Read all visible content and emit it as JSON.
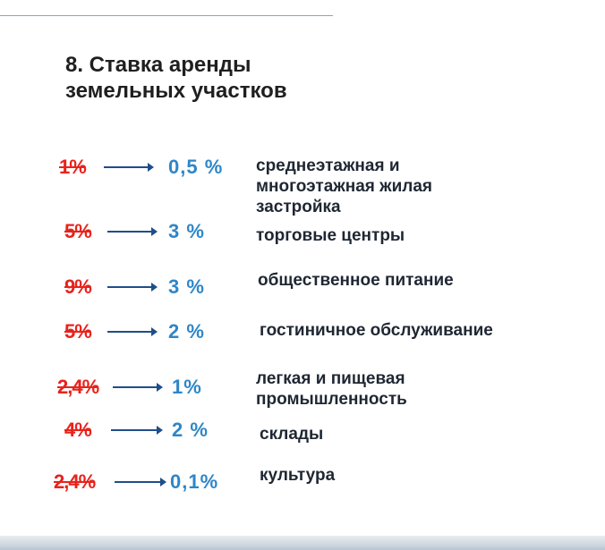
{
  "title": {
    "line1": "8. Ставка аренды",
    "line2": "земельных участков"
  },
  "rows": [
    {
      "old": "1%",
      "new": "0,5 %",
      "desc": "среднеэтажная и\nмногоэтажная жилая\nзастройка"
    },
    {
      "old": "5%",
      "new": "3 %",
      "desc": "торговые центры"
    },
    {
      "old": "9%",
      "new": "3 %",
      "desc": "общественное питание"
    },
    {
      "old": "5%",
      "new": "2 %",
      "desc": "гостиничное обслуживание"
    },
    {
      "old": "2,4%",
      "new": "1%",
      "desc": "легкая и пищевая\nпромышленность"
    },
    {
      "old": "4%",
      "new": "2 %",
      "desc": "склады"
    },
    {
      "old": "2,4%",
      "new": "0,1%",
      "desc": "культура"
    }
  ],
  "colors": {
    "old_rate": "#e8231c",
    "new_rate": "#2e86c8",
    "arrow": "#1f4e8a",
    "text": "#1f2733"
  }
}
